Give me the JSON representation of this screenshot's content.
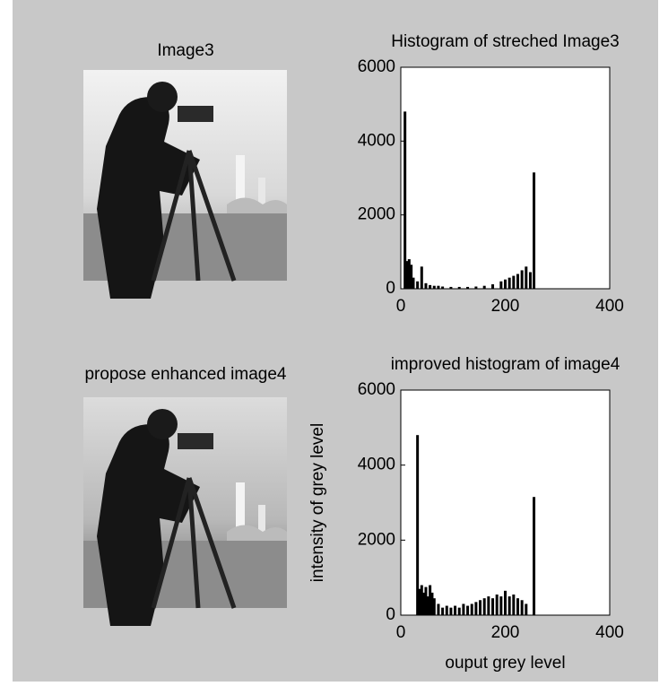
{
  "images": [
    {
      "title": "Image3"
    },
    {
      "title": "propose enhanced image4"
    }
  ],
  "chart_data": [
    {
      "type": "histogram",
      "title": "Histogram of streched Image3",
      "color": "#000000",
      "x": [
        8,
        12,
        16,
        20,
        24,
        32,
        40,
        48,
        56,
        64,
        72,
        80,
        96,
        112,
        128,
        144,
        160,
        176,
        192,
        200,
        208,
        216,
        224,
        232,
        240,
        248,
        255
      ],
      "values": [
        4800,
        750,
        800,
        650,
        300,
        200,
        600,
        150,
        100,
        80,
        80,
        60,
        50,
        50,
        50,
        60,
        80,
        120,
        200,
        250,
        300,
        350,
        400,
        500,
        600,
        450,
        3150
      ],
      "xlim": [
        0,
        400
      ],
      "xticks": [
        0,
        200,
        400
      ],
      "ylim": [
        0,
        6000
      ],
      "yticks": [
        0,
        2000,
        4000,
        6000
      ]
    },
    {
      "type": "histogram",
      "title": "improved histogram of image4",
      "xlabel": "ouput grey level",
      "ylabel": "intensity of grey level",
      "color": "#000000",
      "x": [
        32,
        36,
        40,
        44,
        48,
        52,
        56,
        60,
        64,
        72,
        80,
        88,
        96,
        104,
        112,
        120,
        128,
        136,
        144,
        152,
        160,
        168,
        176,
        184,
        192,
        200,
        208,
        216,
        224,
        232,
        240,
        255
      ],
      "values": [
        4800,
        700,
        800,
        600,
        750,
        500,
        800,
        600,
        450,
        300,
        200,
        250,
        200,
        250,
        200,
        300,
        250,
        300,
        350,
        400,
        450,
        500,
        450,
        550,
        500,
        650,
        500,
        550,
        450,
        400,
        300,
        3150
      ],
      "xlim": [
        0,
        400
      ],
      "xticks": [
        0,
        200,
        400
      ],
      "ylim": [
        0,
        6000
      ],
      "yticks": [
        0,
        2000,
        4000,
        6000
      ]
    }
  ]
}
